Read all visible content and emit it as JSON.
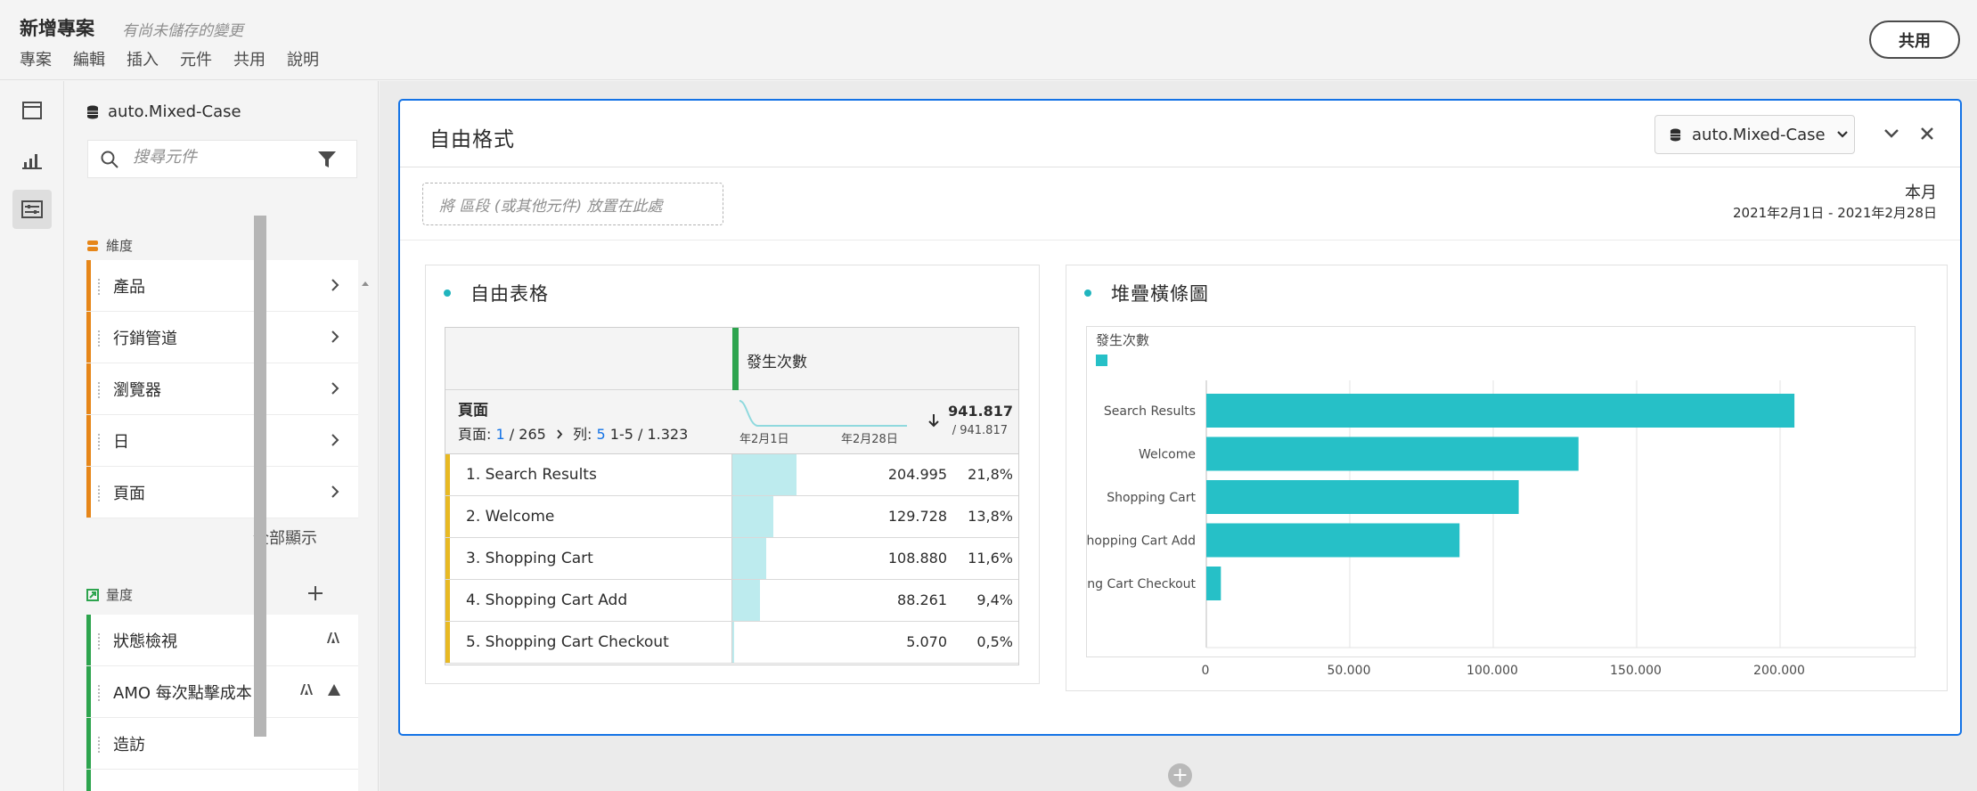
{
  "header": {
    "title": "新增專案",
    "unsaved": "有尚未儲存的變更",
    "menu": [
      "專案",
      "編輯",
      "插入",
      "元件",
      "共用",
      "說明"
    ],
    "share_label": "共用"
  },
  "rail": {
    "icons": [
      "panel-icon",
      "visualization-icon",
      "components-icon"
    ],
    "active": "components-icon"
  },
  "components": {
    "datasource": "auto.Mixed-Case",
    "search_placeholder": "搜尋元件",
    "dimensions_label": "維度",
    "dimensions": [
      "產品",
      "行銷管道",
      "瀏覽器",
      "日",
      "頁面"
    ],
    "show_all": "全部顯示",
    "metrics_label": "量度",
    "metrics": [
      "狀態檢視",
      "AMO 每次點擊成本",
      "造訪"
    ],
    "colors": {
      "dimension": "#e68619",
      "metric": "#2da44e"
    }
  },
  "panel": {
    "title": "自由格式",
    "datasource": "auto.Mixed-Case",
    "drop_zone": "將 區段 (或其他元件) 放置在此處",
    "date_label": "本月",
    "date_range": "2021年2月1日 - 2021年2月28日"
  },
  "freeform": {
    "title": "自由表格",
    "metric": "發生次數",
    "dimension": "頁面",
    "pager": {
      "page_label": "頁面:",
      "page": "1",
      "pages": "/ 265",
      "rows_label": "列:",
      "rows": "5",
      "range": "1-5 / 1.323"
    },
    "total": "941.817",
    "total_sub": "/ 941.817",
    "spark_start": "年2月1日",
    "spark_end": "年2月28日",
    "rows": [
      {
        "name": "1. Search Results",
        "value": "204.995",
        "pct": "21,8%",
        "share": 0.218
      },
      {
        "name": "2. Welcome",
        "value": "129.728",
        "pct": "13,8%",
        "share": 0.138
      },
      {
        "name": "3. Shopping Cart",
        "value": "108.880",
        "pct": "11,6%",
        "share": 0.116
      },
      {
        "name": "4. Shopping Cart Add",
        "value": "88.261",
        "pct": "9,4%",
        "share": 0.094
      },
      {
        "name": "5. Shopping Cart Checkout",
        "value": "5.070",
        "pct": "0,5%",
        "share": 0.005
      }
    ]
  },
  "chart_data": {
    "type": "bar",
    "orientation": "horizontal",
    "title": "堆疊橫條圖",
    "legend": "發生次數",
    "categories": [
      "Search Results",
      "Welcome",
      "Shopping Cart",
      "Shopping Cart Add",
      "Shopping Cart Checkout"
    ],
    "series": [
      {
        "name": "發生次數",
        "values": [
          204995,
          129728,
          108880,
          88261,
          5070
        ],
        "color": "#26c0c7"
      }
    ],
    "xlim": [
      0,
      200000
    ],
    "x_ticks": [
      "0",
      "50.000",
      "100.000",
      "150.000",
      "200.000"
    ],
    "grid": true
  }
}
